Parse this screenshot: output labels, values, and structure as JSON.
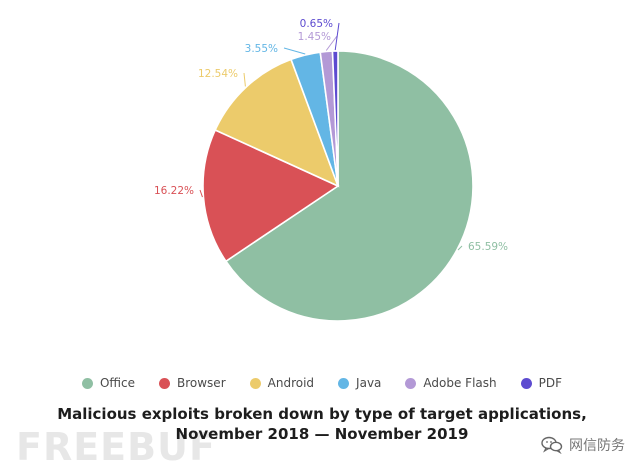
{
  "chart_data": {
    "type": "pie",
    "categories": [
      "Office",
      "Browser",
      "Android",
      "Java",
      "Adobe Flash",
      "PDF"
    ],
    "values": [
      65.59,
      16.22,
      12.54,
      3.55,
      1.45,
      0.65
    ],
    "labels": [
      "65.59%",
      "16.22%",
      "12.54%",
      "3.55%",
      "1.45%",
      "0.65%"
    ],
    "colors": [
      "#8fbfa3",
      "#d95156",
      "#eccb6b",
      "#63b6e5",
      "#b399d6",
      "#5d4bd0"
    ],
    "title": "Malicious exploits broken down by type of target applications, November 2018 — November 2019",
    "title_lines": [
      "Malicious exploits broken down by type of target applications,",
      "November 2018 — November 2019"
    ],
    "legend_position": "bottom",
    "legend": [
      {
        "label": "Office",
        "color": "#8fbfa3"
      },
      {
        "label": "Browser",
        "color": "#d95156"
      },
      {
        "label": "Android",
        "color": "#eccb6b"
      },
      {
        "label": "Java",
        "color": "#63b6e5"
      },
      {
        "label": "Adobe Flash",
        "color": "#b399d6"
      },
      {
        "label": "PDF",
        "color": "#5d4bd0"
      }
    ]
  },
  "watermark": {
    "left": "FREEBUF",
    "right": "网信防务",
    "icon": "wechat-icon"
  }
}
